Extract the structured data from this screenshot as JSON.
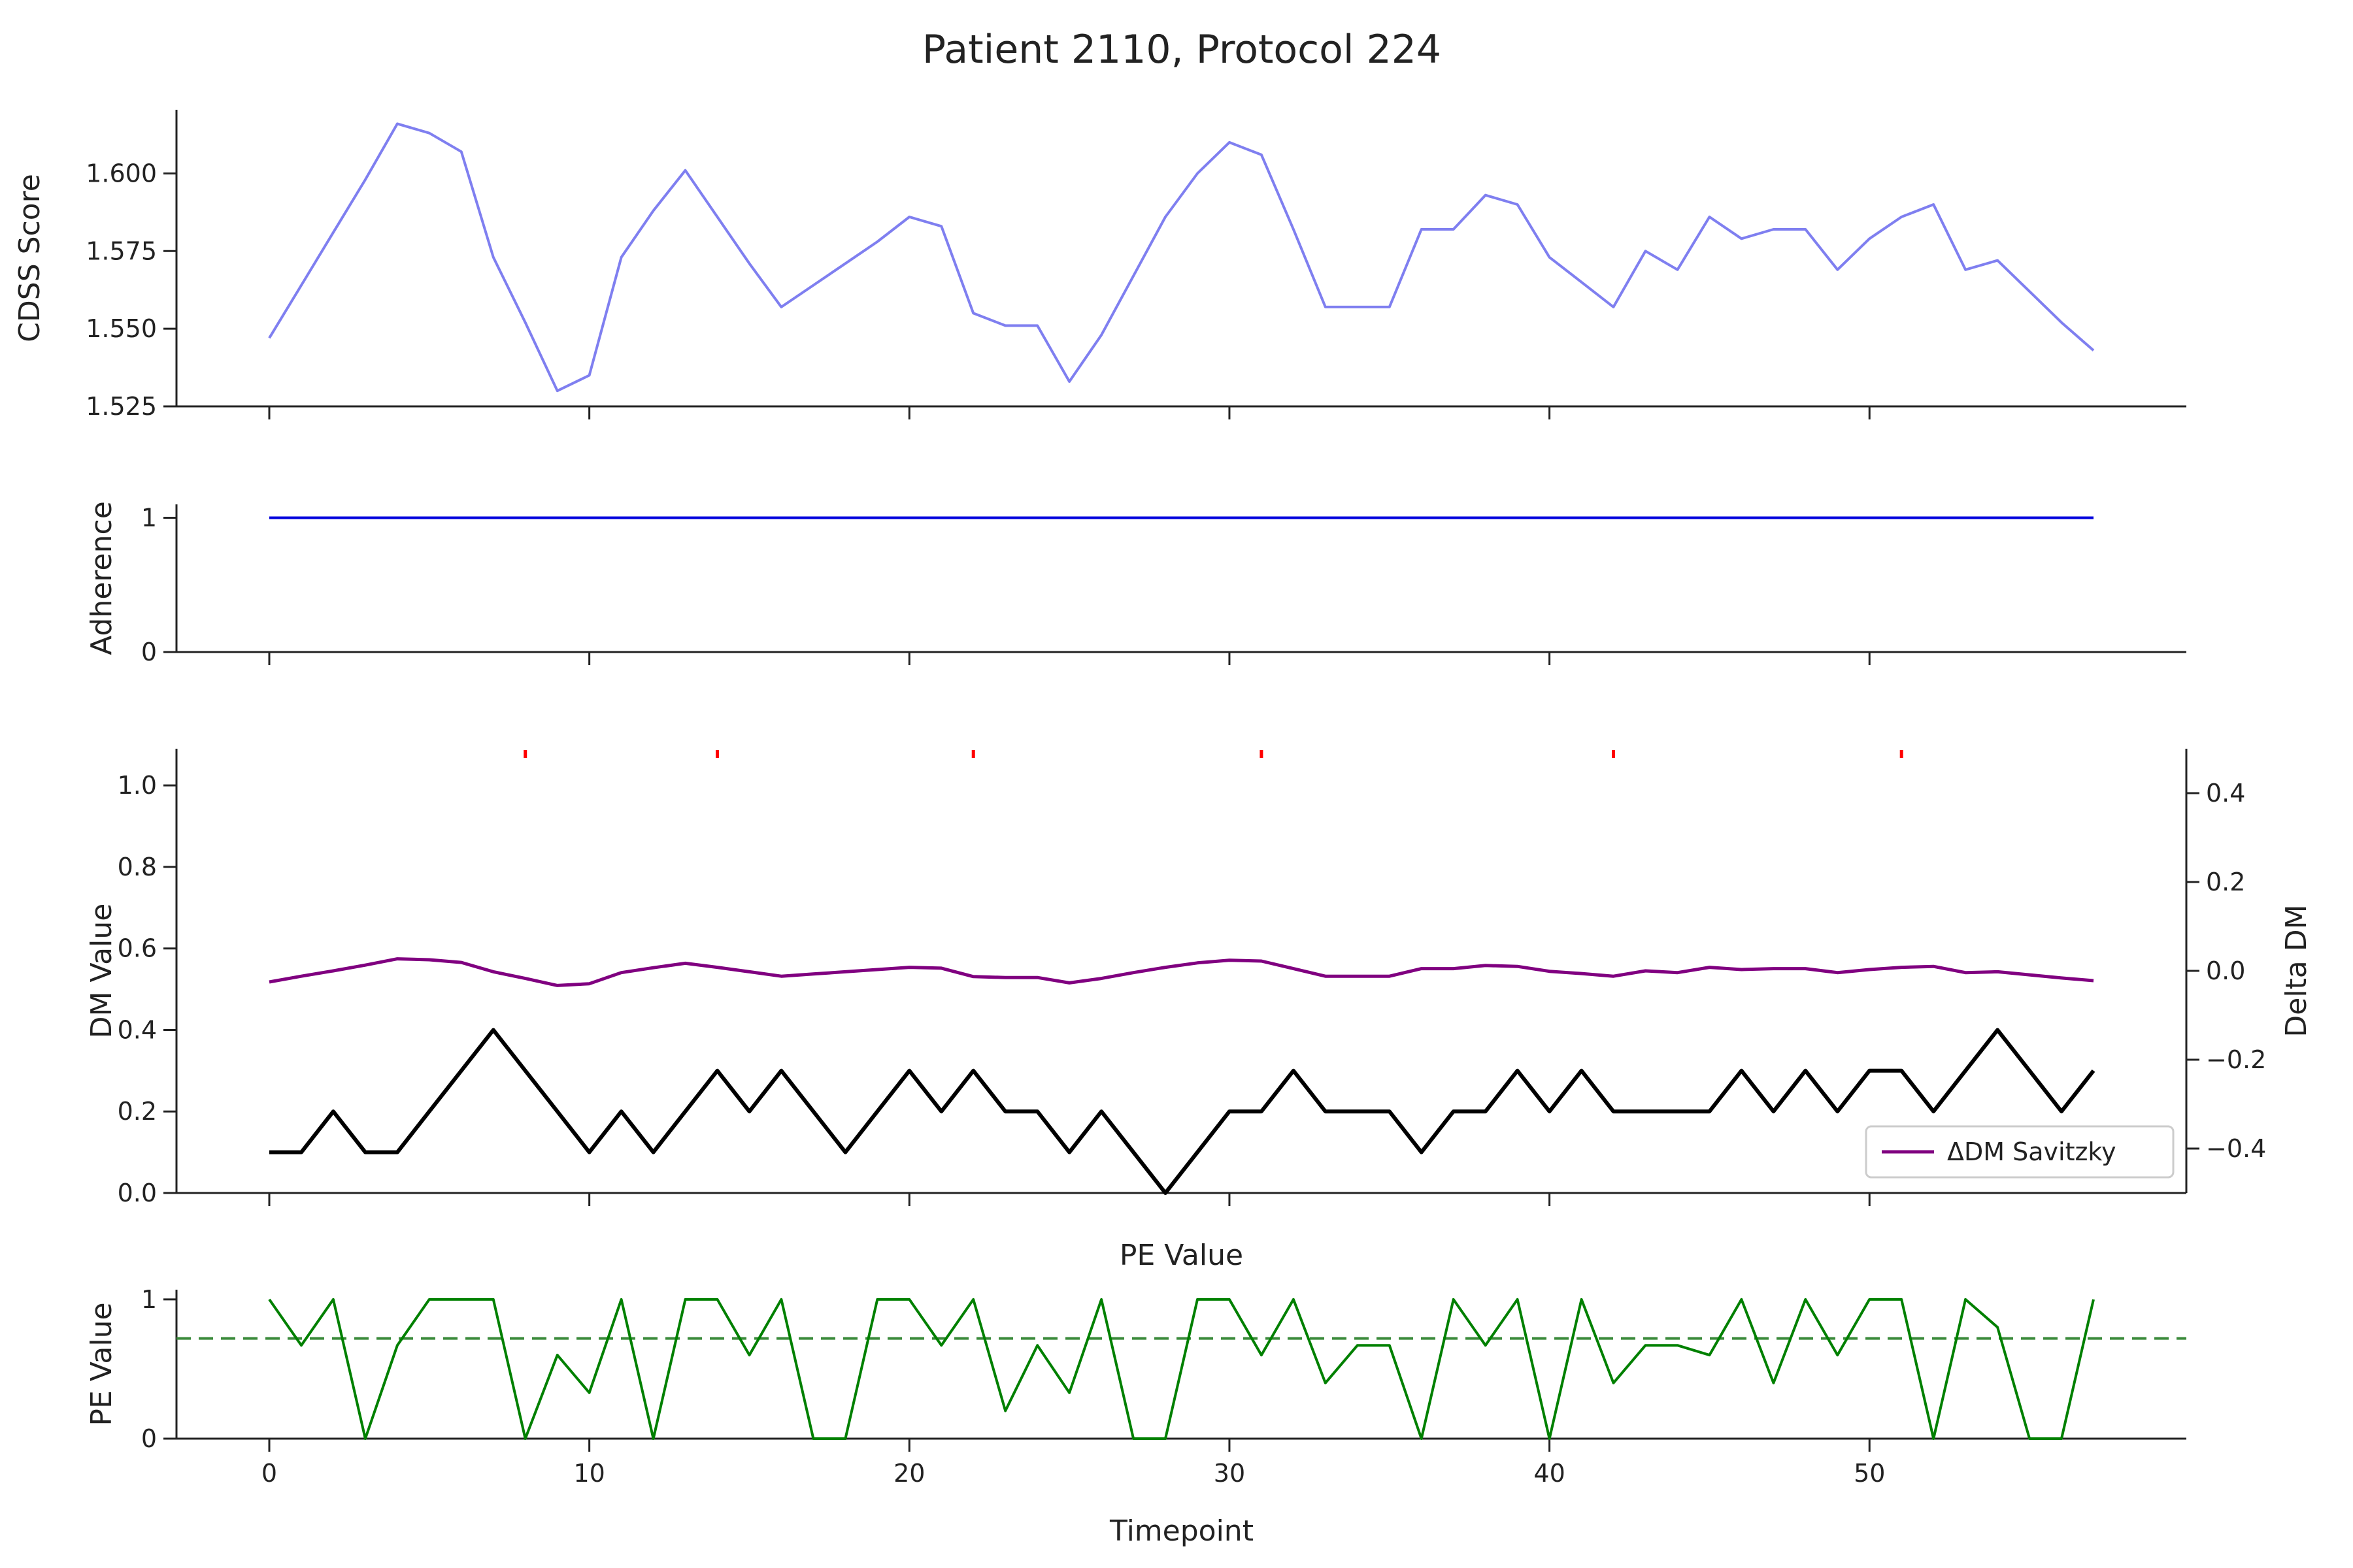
{
  "chart_data": {
    "title": "Patient 2110, Protocol 224",
    "xlabel": "Timepoint",
    "x": [
      0,
      1,
      2,
      3,
      4,
      5,
      6,
      7,
      8,
      9,
      10,
      11,
      12,
      13,
      14,
      15,
      16,
      17,
      18,
      19,
      20,
      21,
      22,
      23,
      24,
      25,
      26,
      27,
      28,
      29,
      30,
      31,
      32,
      33,
      34,
      35,
      36,
      37,
      38,
      39,
      40,
      41,
      42,
      43,
      44,
      45,
      46,
      47,
      48,
      49,
      50,
      51,
      52,
      53,
      54,
      55,
      56,
      57
    ],
    "xlim": [
      -2.9,
      59.9
    ],
    "xticks": [
      0,
      10,
      20,
      30,
      40,
      50
    ],
    "panels": [
      {
        "type": "line",
        "ylabel": "CDSS Score",
        "ylim": [
          1.525,
          1.6205
        ],
        "yticks": [
          1.525,
          1.55,
          1.575,
          1.6
        ],
        "ytick_labels": [
          "1.525",
          "1.550",
          "1.575",
          "1.600"
        ],
        "series": [
          {
            "color": "#7f7ff0",
            "values": [
              1.547,
              1.564,
              1.581,
              1.598,
              1.616,
              1.613,
              1.607,
              1.573,
              1.552,
              1.53,
              1.535,
              1.573,
              1.588,
              1.601,
              1.586,
              1.571,
              1.557,
              1.564,
              1.571,
              1.578,
              1.586,
              1.583,
              1.555,
              1.551,
              1.551,
              1.533,
              1.548,
              1.567,
              1.586,
              1.6,
              1.61,
              1.606,
              1.582,
              1.557,
              1.557,
              1.557,
              1.582,
              1.582,
              1.593,
              1.59,
              1.573,
              1.565,
              1.557,
              1.575,
              1.569,
              1.586,
              1.579,
              1.582,
              1.582,
              1.569,
              1.579,
              1.586,
              1.59,
              1.569,
              1.572,
              1.562,
              1.552,
              1.543
            ]
          }
        ]
      },
      {
        "type": "line",
        "ylabel": "Adherence",
        "ylim": [
          0,
          1.1
        ],
        "yticks": [
          0,
          1
        ],
        "ytick_labels": [
          "0",
          "1"
        ],
        "series": [
          {
            "color": "#0000dd",
            "values": [
              1,
              1,
              1,
              1,
              1,
              1,
              1,
              1,
              1,
              1,
              1,
              1,
              1,
              1,
              1,
              1,
              1,
              1,
              1,
              1,
              1,
              1,
              1,
              1,
              1,
              1,
              1,
              1,
              1,
              1,
              1,
              1,
              1,
              1,
              1,
              1,
              1,
              1,
              1,
              1,
              1,
              1,
              1,
              1,
              1,
              1,
              1,
              1,
              1,
              1,
              1,
              1,
              1,
              1,
              1,
              1,
              1,
              1
            ]
          }
        ]
      },
      {
        "type": "line",
        "ylabel": "DM Value",
        "ylim": [
          0,
          1.09
        ],
        "yticks": [
          0,
          0.2,
          0.4,
          0.6,
          0.8,
          1.0
        ],
        "ytick_labels": [
          "0.0",
          "0.2",
          "0.4",
          "0.6",
          "0.8",
          "1.0"
        ],
        "series": [
          {
            "color": "#000000",
            "values": [
              0.1,
              0.1,
              0.2,
              0.1,
              0.1,
              0.2,
              0.3,
              0.4,
              0.3,
              0.2,
              0.1,
              0.2,
              0.1,
              0.2,
              0.3,
              0.2,
              0.3,
              0.2,
              0.1,
              0.2,
              0.3,
              0.2,
              0.3,
              0.2,
              0.2,
              0.1,
              0.2,
              0.1,
              0.0,
              0.1,
              0.2,
              0.2,
              0.3,
              0.2,
              0.2,
              0.2,
              0.1,
              0.2,
              0.2,
              0.3,
              0.2,
              0.3,
              0.2,
              0.2,
              0.2,
              0.2,
              0.3,
              0.2,
              0.3,
              0.2,
              0.3,
              0.3,
              0.2,
              0.3,
              0.4,
              0.3,
              0.2,
              0.3
            ]
          }
        ],
        "event_markers": {
          "color": "#ff0000",
          "x": [
            8,
            14,
            22,
            31,
            42,
            51
          ]
        },
        "secondary_axis": {
          "ylabel": "Delta DM",
          "ylim": [
            -0.5,
            0.5
          ],
          "yticks": [
            -0.4,
            -0.2,
            0.0,
            0.2,
            0.4
          ],
          "ytick_labels": [
            "−0.4",
            "−0.2",
            "0.0",
            "0.2",
            "0.4"
          ],
          "series": [
            {
              "name": "ΔDM Savitzky",
              "color": "#800080",
              "values": [
                -0.025,
                -0.012,
                0.0,
                0.013,
                0.027,
                0.025,
                0.019,
                -0.002,
                -0.017,
                -0.033,
                -0.029,
                -0.004,
                0.007,
                0.017,
                0.008,
                -0.002,
                -0.012,
                -0.007,
                -0.002,
                0.003,
                0.008,
                0.006,
                -0.013,
                -0.015,
                -0.015,
                -0.027,
                -0.017,
                -0.004,
                0.008,
                0.018,
                0.024,
                0.022,
                0.005,
                -0.012,
                -0.012,
                -0.012,
                0.005,
                0.005,
                0.012,
                0.01,
                -0.001,
                -0.006,
                -0.012,
                0.0,
                -0.004,
                0.008,
                0.003,
                0.005,
                0.005,
                -0.004,
                0.003,
                0.008,
                0.01,
                -0.004,
                -0.002,
                -0.009,
                -0.016,
                -0.022
              ]
            }
          ],
          "legend_position": "lower-right"
        }
      },
      {
        "type": "line",
        "title": "PE Value",
        "ylabel": "PE Value",
        "ylim": [
          0,
          1.07
        ],
        "yticks": [
          0,
          1
        ],
        "ytick_labels": [
          "0",
          "1"
        ],
        "series": [
          {
            "color": "#008000",
            "values": [
              1.0,
              0.67,
              1.0,
              0.0,
              0.67,
              1.0,
              1.0,
              1.0,
              0.0,
              0.6,
              0.33,
              1.0,
              0.0,
              1.0,
              1.0,
              0.6,
              1.0,
              0.0,
              0.0,
              1.0,
              1.0,
              0.67,
              1.0,
              0.2,
              0.67,
              0.33,
              1.0,
              0.0,
              0.0,
              1.0,
              1.0,
              0.6,
              1.0,
              0.4,
              0.67,
              0.67,
              0.0,
              1.0,
              0.67,
              1.0,
              0.0,
              1.0,
              0.4,
              0.67,
              0.67,
              0.6,
              1.0,
              0.4,
              1.0,
              0.6,
              1.0,
              1.0,
              0.0,
              1.0,
              0.8,
              0.0,
              0.0,
              1.0
            ]
          }
        ],
        "reference_line": {
          "y": 0.72,
          "color": "#3a8a3a",
          "style": "dashed"
        }
      }
    ]
  }
}
